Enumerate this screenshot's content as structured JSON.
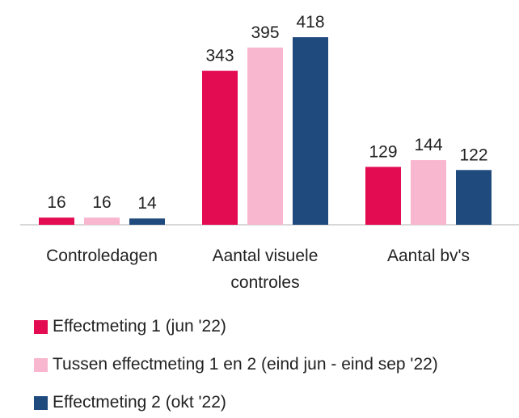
{
  "chart_data": {
    "type": "bar",
    "categories": [
      "Controledagen",
      "Aantal visuele controles",
      "Aantal bv's"
    ],
    "series": [
      {
        "name": "Effectmeting 1 (jun '22)",
        "color": "#e30b52",
        "values": [
          16,
          343,
          129
        ]
      },
      {
        "name": "Tussen effectmeting 1 en 2 (eind jun - eind sep '22)",
        "color": "#f9b6cf",
        "values": [
          16,
          395,
          144
        ]
      },
      {
        "name": "Effectmeting 2 (okt '22)",
        "color": "#1f4a7d",
        "values": [
          14,
          418,
          122
        ]
      }
    ]
  }
}
